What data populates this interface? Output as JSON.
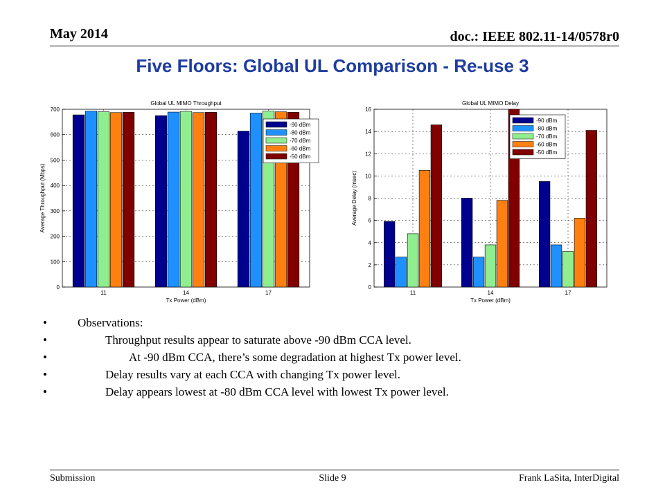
{
  "header": {
    "date": "May 2014",
    "doc_id": "doc.: IEEE 802.11-14/0578r0"
  },
  "slide": {
    "title": "Five Floors: Global UL Comparison - Re-use 3"
  },
  "chart_data": [
    {
      "type": "bar",
      "title": "Global UL MIMO Throughput",
      "xlabel": "Tx Power (dBm)",
      "ylabel": "Average Throughput (Mbps)",
      "ylim": [
        0,
        700
      ],
      "yticks": [
        "0",
        "100",
        "200",
        "300",
        "400",
        "500",
        "600",
        "700"
      ],
      "categories": [
        "11",
        "14",
        "17"
      ],
      "grid": true,
      "legend_position": "top-right",
      "series": [
        {
          "name": "-90 dBm",
          "color": "#00008f",
          "values": [
            678,
            675,
            614
          ]
        },
        {
          "name": "-80 dBm",
          "color": "#1e90ff",
          "values": [
            693,
            689,
            685
          ]
        },
        {
          "name": "-70 dBm",
          "color": "#90ee90",
          "values": [
            690,
            692,
            693
          ]
        },
        {
          "name": "-60 dBm",
          "color": "#ff8010",
          "values": [
            687,
            687,
            690
          ]
        },
        {
          "name": "-50 dBm",
          "color": "#800000",
          "values": [
            688,
            688,
            688
          ]
        }
      ]
    },
    {
      "type": "bar",
      "title": "Global UL MIMO Delay",
      "xlabel": "Tx Power (dBm)",
      "ylabel": "Average Delay (msec)",
      "ylim": [
        0,
        16
      ],
      "yticks": [
        "0",
        "2",
        "4",
        "6",
        "8",
        "10",
        "12",
        "14",
        "16"
      ],
      "categories": [
        "11",
        "14",
        "17"
      ],
      "grid": true,
      "legend_position": "top-right",
      "series": [
        {
          "name": "-90 dBm",
          "color": "#00008f",
          "values": [
            5.9,
            8.0,
            9.5
          ]
        },
        {
          "name": "-80 dBm",
          "color": "#1e90ff",
          "values": [
            2.7,
            2.7,
            3.8
          ]
        },
        {
          "name": "-70 dBm",
          "color": "#90ee90",
          "values": [
            4.8,
            3.8,
            3.2
          ]
        },
        {
          "name": "-60 dBm",
          "color": "#ff8010",
          "values": [
            10.5,
            7.8,
            6.2
          ]
        },
        {
          "name": "-50 dBm",
          "color": "#800000",
          "values": [
            14.6,
            16.0,
            14.1
          ]
        }
      ]
    }
  ],
  "bullets": [
    {
      "level": 1,
      "text": "Observations:"
    },
    {
      "level": 2,
      "text": "Throughput results appear to saturate above -90 dBm CCA level."
    },
    {
      "level": 3,
      "text": "At -90 dBm CCA, there’s some degradation at highest Tx power level."
    },
    {
      "level": 2,
      "text": "Delay results vary at each CCA with changing Tx power level."
    },
    {
      "level": 2,
      "text": "Delay appears lowest at -80 dBm CCA level with lowest Tx power level."
    }
  ],
  "footer": {
    "left": "Submission",
    "center": "Slide 9",
    "right": "Frank LaSita, InterDigital"
  }
}
